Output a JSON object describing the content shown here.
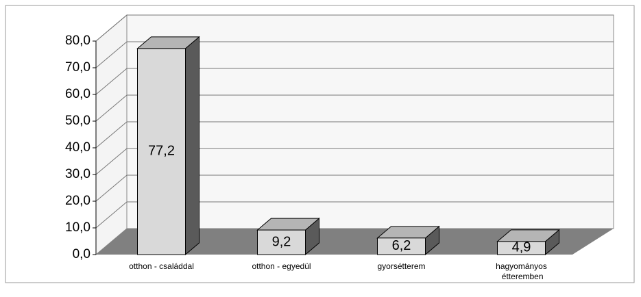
{
  "chart_data": {
    "type": "bar3d",
    "categories": [
      "otthon - családdal",
      "otthon - egyedül",
      "gyorsétterem",
      "hagyományos étteremben"
    ],
    "values": [
      77.2,
      9.2,
      6.2,
      4.9
    ],
    "value_labels": [
      "77,2",
      "9,2",
      "6,2",
      "4,9"
    ],
    "color": "#d9d9d9",
    "ylim": [
      0,
      80
    ],
    "yticks": [
      {
        "value": 0,
        "label": "0,0"
      },
      {
        "value": 10,
        "label": "10,0"
      },
      {
        "value": 20,
        "label": "20,0"
      },
      {
        "value": 30,
        "label": "30,0"
      },
      {
        "value": 40,
        "label": "40,0"
      },
      {
        "value": 50,
        "label": "50,0"
      },
      {
        "value": 60,
        "label": "60,0"
      },
      {
        "value": 70,
        "label": "70,0"
      },
      {
        "value": 80,
        "label": "80,0"
      }
    ],
    "grid": true
  }
}
